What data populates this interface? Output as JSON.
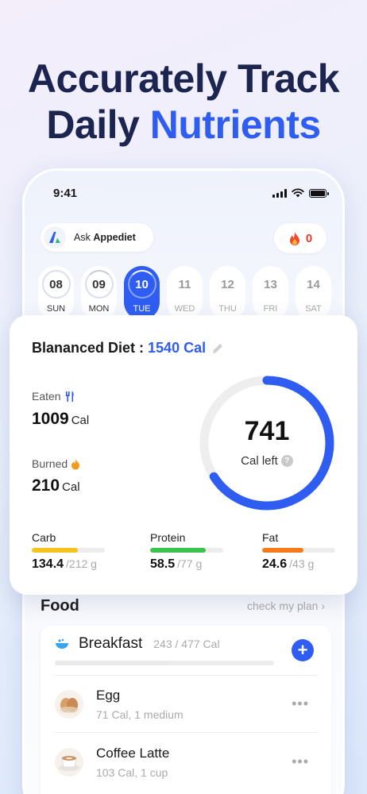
{
  "headline": {
    "line1": "Accurately Track",
    "line2_plain": "Daily ",
    "line2_accent": "Nutrients"
  },
  "status": {
    "time": "9:41"
  },
  "ask": {
    "prefix": "Ask ",
    "brand": "Appediet"
  },
  "streak": {
    "count": "0"
  },
  "days": [
    {
      "num": "08",
      "label": "SUN",
      "state": "past"
    },
    {
      "num": "09",
      "label": "MON",
      "state": "past"
    },
    {
      "num": "10",
      "label": "TUE",
      "state": "active"
    },
    {
      "num": "11",
      "label": "WED",
      "state": "future"
    },
    {
      "num": "12",
      "label": "THU",
      "state": "future"
    },
    {
      "num": "13",
      "label": "FRI",
      "state": "future"
    },
    {
      "num": "14",
      "label": "SAT",
      "state": "future"
    }
  ],
  "summary": {
    "title": "Blananced Diet : ",
    "target": "1540 Cal",
    "eaten_label": "Eaten",
    "eaten_value": "1009",
    "burned_label": "Burned",
    "burned_value": "210",
    "unit": "Cal",
    "left_value": "741",
    "left_label": "Cal left",
    "progress_fraction": 0.66
  },
  "macros": [
    {
      "name": "Carb",
      "value": "134.4",
      "total": "/212 g",
      "fraction": 0.63,
      "color": "#f7c21b"
    },
    {
      "name": "Protein",
      "value": "58.5",
      "total": "/77 g",
      "fraction": 0.76,
      "color": "#3cc14c"
    },
    {
      "name": "Fat",
      "value": "24.6",
      "total": "/43 g",
      "fraction": 0.57,
      "color": "#f57a1a"
    }
  ],
  "food": {
    "title": "Food",
    "link": "check my plan ›",
    "meal": {
      "name": "Breakfast",
      "cal": "243 / 477 Cal",
      "fraction": 0.51
    },
    "items": [
      {
        "name": "Egg",
        "meta": "71 Cal, 1 medium",
        "icon": "egg-icon"
      },
      {
        "name": "Coffee Latte",
        "meta": "103 Cal, 1 cup",
        "icon": "coffee-latte-icon"
      }
    ]
  },
  "colors": {
    "accent": "#2f5df2",
    "headline": "#1b2550"
  }
}
